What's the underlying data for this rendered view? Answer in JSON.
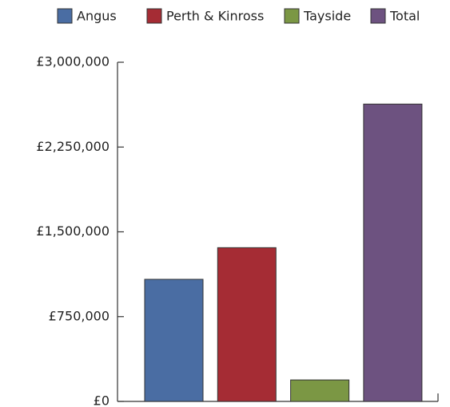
{
  "chart_data": {
    "type": "bar",
    "categories": [
      null
    ],
    "series": [
      {
        "name": "Angus",
        "color": "#4a6da3",
        "values": [
          1080000
        ]
      },
      {
        "name": "Perth & Kinross",
        "color": "#a52c34",
        "values": [
          1360000
        ]
      },
      {
        "name": "Tayside",
        "color": "#7b9744",
        "values": [
          190000
        ]
      },
      {
        "name": "Total",
        "color": "#6d5280",
        "values": [
          2630000
        ]
      }
    ],
    "ylim": [
      0,
      3000000
    ],
    "yticks": [
      {
        "value": 0,
        "label": "£0"
      },
      {
        "value": 750000,
        "label": "£750,000"
      },
      {
        "value": 1500000,
        "label": "£1,500,000"
      },
      {
        "value": 2250000,
        "label": "£2,250,000"
      },
      {
        "value": 3000000,
        "label": "£3,000,000"
      }
    ],
    "grid": false,
    "legend": "top"
  }
}
